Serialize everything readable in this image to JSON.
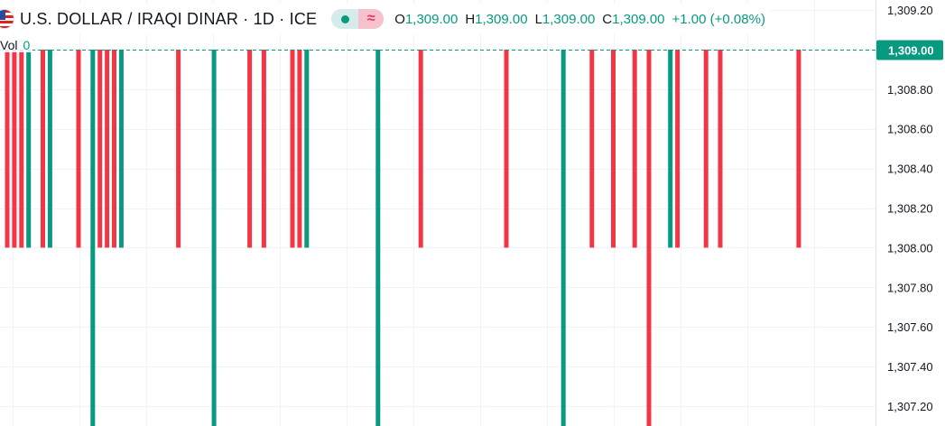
{
  "header": {
    "symbol_title": "U.S. DOLLAR / IRAQI DINAR · 1D · ICE",
    "ohlc": [
      {
        "label": "O",
        "value": "1,309.00"
      },
      {
        "label": "H",
        "value": "1,309.00"
      },
      {
        "label": "L",
        "value": "1,309.00"
      },
      {
        "label": "C",
        "value": "1,309.00"
      }
    ],
    "change": "+1.00 (+0.08%)",
    "volume_label": "Vol",
    "volume_value": "0"
  },
  "colors": {
    "up": "#089981",
    "down": "#f23645",
    "grid": "#f0f3fa",
    "axis_text": "#131722",
    "price_line": "#089981"
  },
  "chart_data": {
    "type": "candlestick",
    "symbol": "USD/IQD",
    "interval": "1D",
    "y_axis": {
      "ticks": [
        1309.2,
        1309.0,
        1308.8,
        1308.6,
        1308.4,
        1308.2,
        1308.0,
        1307.8,
        1307.6,
        1307.4,
        1307.2
      ],
      "tick_labels": [
        "1,309.20",
        "1,309.00",
        "1,308.80",
        "1,308.60",
        "1,308.40",
        "1,308.20",
        "1,308.00",
        "1,307.80",
        "1,307.60",
        "1,307.40",
        "1,307.20"
      ],
      "ylim": [
        1307.15,
        1309.25
      ]
    },
    "current_price": 1309.0,
    "current_price_label": "1,309.00",
    "candles": [
      {
        "i": 0,
        "dir": "down",
        "high": 1309.0,
        "low": 1308.0
      },
      {
        "i": 1,
        "dir": "down",
        "high": 1309.0,
        "low": 1308.0
      },
      {
        "i": 2,
        "dir": "down",
        "high": 1309.0,
        "low": 1308.0
      },
      {
        "i": 3,
        "dir": "up",
        "high": 1309.0,
        "low": 1308.0
      },
      {
        "i": 5,
        "dir": "down",
        "high": 1309.0,
        "low": 1308.0
      },
      {
        "i": 6,
        "dir": "up",
        "high": 1309.0,
        "low": 1308.0
      },
      {
        "i": 10,
        "dir": "down",
        "high": 1309.0,
        "low": 1308.0
      },
      {
        "i": 12,
        "dir": "up",
        "high": 1309.0,
        "low": 1307.0
      },
      {
        "i": 13,
        "dir": "down",
        "high": 1309.0,
        "low": 1308.0
      },
      {
        "i": 14,
        "dir": "down",
        "high": 1309.0,
        "low": 1308.0
      },
      {
        "i": 15,
        "dir": "down",
        "high": 1309.0,
        "low": 1308.0
      },
      {
        "i": 16,
        "dir": "up",
        "high": 1309.0,
        "low": 1308.0
      },
      {
        "i": 24,
        "dir": "down",
        "high": 1309.0,
        "low": 1308.0
      },
      {
        "i": 29,
        "dir": "up",
        "high": 1309.0,
        "low": 1307.0
      },
      {
        "i": 34,
        "dir": "down",
        "high": 1309.0,
        "low": 1308.0
      },
      {
        "i": 36,
        "dir": "down",
        "high": 1309.0,
        "low": 1308.0
      },
      {
        "i": 40,
        "dir": "down",
        "high": 1309.0,
        "low": 1308.0
      },
      {
        "i": 41,
        "dir": "down",
        "high": 1309.0,
        "low": 1308.0
      },
      {
        "i": 42,
        "dir": "up",
        "high": 1309.0,
        "low": 1308.0
      },
      {
        "i": 52,
        "dir": "up",
        "high": 1309.0,
        "low": 1307.0
      },
      {
        "i": 58,
        "dir": "down",
        "high": 1309.0,
        "low": 1308.0
      },
      {
        "i": 70,
        "dir": "down",
        "high": 1309.0,
        "low": 1308.0
      },
      {
        "i": 78,
        "dir": "up",
        "high": 1309.0,
        "low": 1307.0
      },
      {
        "i": 82,
        "dir": "down",
        "high": 1309.0,
        "low": 1308.0
      },
      {
        "i": 85,
        "dir": "down",
        "high": 1309.0,
        "low": 1308.0
      },
      {
        "i": 88,
        "dir": "down",
        "high": 1309.0,
        "low": 1308.0
      },
      {
        "i": 90,
        "dir": "down",
        "high": 1309.0,
        "low": 1307.0
      },
      {
        "i": 93,
        "dir": "up",
        "high": 1309.0,
        "low": 1308.0
      },
      {
        "i": 94,
        "dir": "down",
        "high": 1309.0,
        "low": 1308.0
      },
      {
        "i": 98,
        "dir": "down",
        "high": 1309.0,
        "low": 1308.0
      },
      {
        "i": 100,
        "dir": "down",
        "high": 1309.0,
        "low": 1308.0
      },
      {
        "i": 111,
        "dir": "down",
        "high": 1309.0,
        "low": 1308.0
      }
    ]
  }
}
